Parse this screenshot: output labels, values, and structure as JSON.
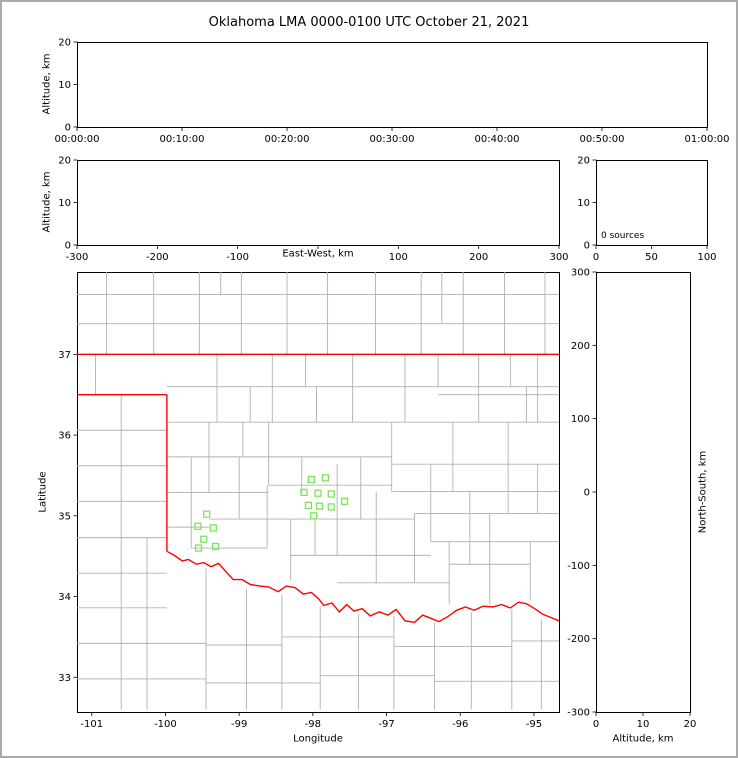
{
  "title": "Oklahoma LMA 0000-0100 UTC October 21, 2021",
  "colors": {
    "figure_frame": "#aaaaaa",
    "panel_border": "#000000",
    "county_line": "#b0b0b0",
    "state_border": "#ff0000",
    "station_marker": "#7fe35a"
  },
  "chart_data": [
    {
      "id": "altitude_vs_time",
      "type": "scatter",
      "xlabel": "",
      "ylabel": "Altitude, km",
      "x_tick_labels": [
        "00:00:00",
        "00:10:00",
        "00:20:00",
        "00:30:00",
        "00:40:00",
        "00:50:00",
        "01:00:00"
      ],
      "yticks": [
        0,
        10,
        20
      ],
      "ylim": [
        0,
        20
      ],
      "points": []
    },
    {
      "id": "altitude_vs_east_west",
      "type": "scatter",
      "xlabel": "East-West, km",
      "ylabel": "Altitude, km",
      "xlim": [
        -300,
        300
      ],
      "ylim": [
        0,
        20
      ],
      "xticks": [
        -300,
        -200,
        -100,
        0,
        100,
        200,
        300
      ],
      "hide_zero_label": true,
      "yticks": [
        0,
        10,
        20
      ],
      "points": []
    },
    {
      "id": "source_histogram",
      "type": "line",
      "annotation": "0 sources",
      "xlim": [
        0,
        100
      ],
      "ylim": [
        0,
        20
      ],
      "xticks": [
        0,
        50,
        100
      ],
      "yticks": [
        0,
        10,
        20
      ],
      "points": []
    },
    {
      "id": "plan_view_map",
      "type": "scatter",
      "xlabel": "Longitude",
      "ylabel": "Latitude",
      "xlim": [
        -101.2,
        -94.66
      ],
      "ylim": [
        32.57,
        38.02
      ],
      "xticks": [
        -101,
        -100,
        -99,
        -98,
        -97,
        -96,
        -95
      ],
      "yticks": [
        33,
        34,
        35,
        36,
        37
      ],
      "stations": [
        [
          -99.44,
          35.02
        ],
        [
          -99.56,
          34.87
        ],
        [
          -99.35,
          34.85
        ],
        [
          -99.48,
          34.71
        ],
        [
          -99.55,
          34.6
        ],
        [
          -99.32,
          34.62
        ],
        [
          -98.02,
          35.45
        ],
        [
          -97.83,
          35.47
        ],
        [
          -98.12,
          35.29
        ],
        [
          -97.93,
          35.28
        ],
        [
          -97.75,
          35.27
        ],
        [
          -98.06,
          35.13
        ],
        [
          -97.91,
          35.12
        ],
        [
          -97.75,
          35.11
        ],
        [
          -97.99,
          35.0
        ],
        [
          -97.57,
          35.18
        ]
      ],
      "state_border": {
        "north": [
          [
            -101.21,
            37.0
          ],
          [
            -94.66,
            37.0
          ]
        ],
        "panhandle_south": [
          [
            -101.21,
            36.5
          ],
          [
            -99.98,
            36.5
          ]
        ],
        "west": [
          [
            -99.98,
            36.5
          ],
          [
            -99.98,
            34.56
          ]
        ],
        "red_river": [
          [
            -99.98,
            34.56
          ],
          [
            -99.88,
            34.51
          ],
          [
            -99.77,
            34.44
          ],
          [
            -99.69,
            34.46
          ],
          [
            -99.58,
            34.4
          ],
          [
            -99.48,
            34.42
          ],
          [
            -99.38,
            34.37
          ],
          [
            -99.28,
            34.41
          ],
          [
            -99.18,
            34.31
          ],
          [
            -99.08,
            34.21
          ],
          [
            -98.96,
            34.21
          ],
          [
            -98.85,
            34.15
          ],
          [
            -98.72,
            34.13
          ],
          [
            -98.6,
            34.12
          ],
          [
            -98.47,
            34.06
          ],
          [
            -98.36,
            34.13
          ],
          [
            -98.24,
            34.11
          ],
          [
            -98.13,
            34.03
          ],
          [
            -98.02,
            34.05
          ],
          [
            -97.93,
            33.98
          ],
          [
            -97.85,
            33.89
          ],
          [
            -97.74,
            33.92
          ],
          [
            -97.64,
            33.81
          ],
          [
            -97.54,
            33.9
          ],
          [
            -97.44,
            33.82
          ],
          [
            -97.33,
            33.85
          ],
          [
            -97.22,
            33.76
          ],
          [
            -97.1,
            33.81
          ],
          [
            -96.98,
            33.77
          ],
          [
            -96.87,
            33.84
          ],
          [
            -96.75,
            33.7
          ],
          [
            -96.62,
            33.68
          ],
          [
            -96.51,
            33.77
          ],
          [
            -96.4,
            33.73
          ],
          [
            -96.29,
            33.69
          ],
          [
            -96.17,
            33.75
          ],
          [
            -96.05,
            33.83
          ],
          [
            -95.93,
            33.87
          ],
          [
            -95.81,
            33.83
          ],
          [
            -95.69,
            33.88
          ],
          [
            -95.56,
            33.87
          ],
          [
            -95.44,
            33.9
          ],
          [
            -95.32,
            33.86
          ],
          [
            -95.21,
            33.93
          ],
          [
            -95.1,
            33.91
          ],
          [
            -94.99,
            33.85
          ],
          [
            -94.88,
            33.78
          ],
          [
            -94.77,
            33.74
          ],
          [
            -94.66,
            33.7
          ]
        ]
      },
      "county_lines": {
        "horizontal": [
          [
            37.74,
            -101.21,
            -94.66
          ],
          [
            37.38,
            -101.21,
            -94.66
          ],
          [
            36.6,
            -99.98,
            -94.66
          ],
          [
            36.16,
            -99.98,
            -94.66
          ],
          [
            36.5,
            -96.3,
            -94.66
          ],
          [
            36.06,
            -101.21,
            -99.98
          ],
          [
            35.62,
            -101.21,
            -99.98
          ],
          [
            35.73,
            -99.98,
            -96.93
          ],
          [
            35.64,
            -96.93,
            -94.66
          ],
          [
            35.29,
            -99.98,
            -98.6
          ],
          [
            35.38,
            -98.6,
            -96.93
          ],
          [
            35.3,
            -96.93,
            -94.66
          ],
          [
            35.18,
            -101.21,
            -99.98
          ],
          [
            34.96,
            -99.41,
            -96.62
          ],
          [
            35.03,
            -96.62,
            -94.66
          ],
          [
            34.86,
            -99.98,
            -99.41
          ],
          [
            34.73,
            -101.21,
            -99.98
          ],
          [
            34.6,
            -99.65,
            -98.62
          ],
          [
            34.51,
            -98.3,
            -96.4
          ],
          [
            34.68,
            -96.4,
            -94.66
          ],
          [
            34.29,
            -101.21,
            -99.98
          ],
          [
            34.17,
            -97.67,
            -96.15
          ],
          [
            34.4,
            -96.15,
            -95.05
          ],
          [
            33.86,
            -101.21,
            -99.98
          ],
          [
            33.42,
            -101.21,
            -99.45
          ],
          [
            33.4,
            -99.45,
            -98.42
          ],
          [
            33.5,
            -98.42,
            -96.9
          ],
          [
            33.38,
            -96.9,
            -95.3
          ],
          [
            33.45,
            -95.3,
            -94.66
          ],
          [
            32.98,
            -101.21,
            -99.45
          ],
          [
            32.93,
            -99.45,
            -97.9
          ],
          [
            33.02,
            -97.9,
            -96.35
          ],
          [
            32.95,
            -96.35,
            -94.66
          ]
        ],
        "vertical": [
          [
            -100.8,
            37.0,
            38.02
          ],
          [
            -100.16,
            37.0,
            38.02
          ],
          [
            -99.54,
            37.0,
            38.02
          ],
          [
            -98.97,
            37.0,
            38.02
          ],
          [
            -98.35,
            37.0,
            38.02
          ],
          [
            -97.8,
            37.0,
            38.02
          ],
          [
            -97.15,
            37.0,
            38.02
          ],
          [
            -96.53,
            37.0,
            38.02
          ],
          [
            -95.96,
            37.0,
            38.02
          ],
          [
            -95.4,
            37.0,
            38.02
          ],
          [
            -94.85,
            37.0,
            38.02
          ],
          [
            -96.25,
            37.38,
            38.02
          ],
          [
            -99.25,
            37.74,
            38.02
          ],
          [
            -100.95,
            36.5,
            37.0
          ],
          [
            -100.6,
            32.6,
            36.5
          ],
          [
            -100.25,
            32.6,
            34.73
          ],
          [
            -99.3,
            36.16,
            37.0
          ],
          [
            -98.55,
            36.16,
            37.0
          ],
          [
            -98.1,
            36.6,
            37.0
          ],
          [
            -97.46,
            36.16,
            37.0
          ],
          [
            -96.75,
            36.16,
            37.0
          ],
          [
            -96.3,
            36.6,
            37.0
          ],
          [
            -95.75,
            36.16,
            37.0
          ],
          [
            -95.32,
            36.6,
            37.0
          ],
          [
            -94.95,
            36.16,
            37.0
          ],
          [
            -98.85,
            36.16,
            36.6
          ],
          [
            -97.95,
            36.16,
            36.6
          ],
          [
            -95.1,
            36.16,
            36.6
          ],
          [
            -99.41,
            35.29,
            36.16
          ],
          [
            -99.65,
            34.6,
            35.73
          ],
          [
            -99.0,
            34.96,
            35.73
          ],
          [
            -98.95,
            35.73,
            36.16
          ],
          [
            -98.62,
            34.6,
            35.38
          ],
          [
            -98.6,
            35.38,
            36.16
          ],
          [
            -98.3,
            34.2,
            34.96
          ],
          [
            -98.15,
            35.29,
            35.73
          ],
          [
            -97.97,
            34.51,
            34.96
          ],
          [
            -97.67,
            34.51,
            35.64
          ],
          [
            -97.35,
            34.96,
            35.73
          ],
          [
            -97.14,
            34.17,
            35.3
          ],
          [
            -96.93,
            35.3,
            36.16
          ],
          [
            -96.62,
            34.17,
            35.03
          ],
          [
            -96.4,
            34.68,
            35.64
          ],
          [
            -96.15,
            33.9,
            34.68
          ],
          [
            -96.1,
            35.3,
            36.16
          ],
          [
            -95.87,
            34.4,
            35.3
          ],
          [
            -95.6,
            33.9,
            35.03
          ],
          [
            -95.35,
            35.03,
            36.16
          ],
          [
            -95.05,
            33.95,
            34.68
          ],
          [
            -94.95,
            35.03,
            35.64
          ],
          [
            -99.45,
            32.6,
            34.35
          ],
          [
            -98.9,
            32.6,
            34.1
          ],
          [
            -98.42,
            32.6,
            34.02
          ],
          [
            -97.9,
            32.6,
            33.88
          ],
          [
            -97.38,
            32.6,
            33.78
          ],
          [
            -96.9,
            32.6,
            33.76
          ],
          [
            -96.35,
            32.6,
            33.68
          ],
          [
            -95.85,
            32.6,
            33.8
          ],
          [
            -95.3,
            32.6,
            33.85
          ],
          [
            -94.9,
            32.6,
            33.72
          ]
        ]
      }
    },
    {
      "id": "altitude_vs_north_south",
      "type": "scatter",
      "xlabel": "Altitude, km",
      "ylabel": "North-South, km",
      "xlim": [
        0,
        20
      ],
      "ylim": [
        -300,
        300
      ],
      "xticks": [
        0,
        10,
        20
      ],
      "yticks": [
        -300,
        -200,
        -100,
        0,
        100,
        200,
        300
      ],
      "points": []
    }
  ]
}
